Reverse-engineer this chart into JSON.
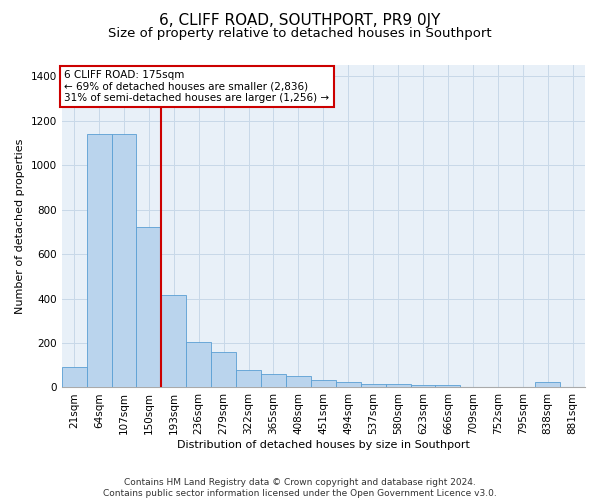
{
  "title": "6, CLIFF ROAD, SOUTHPORT, PR9 0JY",
  "subtitle": "Size of property relative to detached houses in Southport",
  "xlabel": "Distribution of detached houses by size in Southport",
  "ylabel": "Number of detached properties",
  "footer_line1": "Contains HM Land Registry data © Crown copyright and database right 2024.",
  "footer_line2": "Contains public sector information licensed under the Open Government Licence v3.0.",
  "categories": [
    "21sqm",
    "64sqm",
    "107sqm",
    "150sqm",
    "193sqm",
    "236sqm",
    "279sqm",
    "322sqm",
    "365sqm",
    "408sqm",
    "451sqm",
    "494sqm",
    "537sqm",
    "580sqm",
    "623sqm",
    "666sqm",
    "709sqm",
    "752sqm",
    "795sqm",
    "838sqm",
    "881sqm"
  ],
  "values": [
    90,
    1140,
    1140,
    720,
    415,
    205,
    160,
    80,
    60,
    50,
    35,
    25,
    15,
    15,
    10,
    10,
    0,
    0,
    0,
    25,
    0
  ],
  "bar_color": "#bad4ed",
  "bar_edge_color": "#5a9fd4",
  "grid_color": "#c8d8e8",
  "bg_color": "#e8f0f8",
  "vline_x_index": 3.5,
  "vline_color": "#cc0000",
  "annotation_line1": "6 CLIFF ROAD: 175sqm",
  "annotation_line2": "← 69% of detached houses are smaller (2,836)",
  "annotation_line3": "31% of semi-detached houses are larger (1,256) →",
  "annotation_box_color": "#ffffff",
  "annotation_box_edge_color": "#cc0000",
  "ylim": [
    0,
    1450
  ],
  "yticks": [
    0,
    200,
    400,
    600,
    800,
    1000,
    1200,
    1400
  ],
  "title_fontsize": 11,
  "subtitle_fontsize": 9.5,
  "axis_label_fontsize": 8,
  "tick_fontsize": 7.5,
  "annotation_fontsize": 7.5,
  "footer_fontsize": 6.5
}
